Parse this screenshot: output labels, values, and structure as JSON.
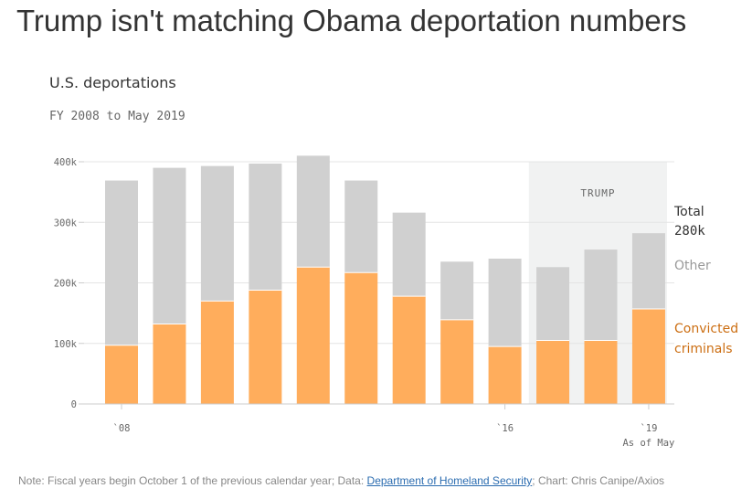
{
  "headline": "Trump isn't matching Obama deportation numbers",
  "note": {
    "prefix": "Note: Fiscal years begin October 1 of the previous calendar year; Data: ",
    "link": "Department of Homeland Security",
    "suffix": "; Chart: Chris Canipe/Axios"
  },
  "chart_data": {
    "type": "bar",
    "stacked": true,
    "title": "U.S. deportations",
    "subtitle": "FY 2008 to May 2019",
    "categories": [
      "2008",
      "2009",
      "2010",
      "2011",
      "2012",
      "2013",
      "2014",
      "2015",
      "2016",
      "2017",
      "2018",
      "2019"
    ],
    "series": [
      {
        "name": "Convicted criminals",
        "color": "#ffad5c",
        "values": [
          97000,
          132000,
          170000,
          188000,
          226000,
          217000,
          178000,
          139000,
          95000,
          105000,
          105000,
          157000
        ]
      },
      {
        "name": "Other",
        "color": "#d0d0d0",
        "values": [
          272000,
          258000,
          223000,
          209000,
          184000,
          152000,
          138000,
          96000,
          145000,
          121000,
          150000,
          125000
        ]
      }
    ],
    "ylim": [
      0,
      400000
    ],
    "y_ticks": [
      0,
      100000,
      200000,
      300000,
      400000
    ],
    "y_tick_labels": [
      "0",
      "100k",
      "200k",
      "300k",
      "400k"
    ],
    "x_tick_labels": [
      {
        "category": "2008",
        "label": "`08"
      },
      {
        "category": "2016",
        "label": "`16"
      },
      {
        "category": "2019",
        "label": "`19"
      }
    ],
    "x_note": "As of May",
    "shaded_region": {
      "label": "TRUMP",
      "from": "2017",
      "to": "2019"
    },
    "legend": {
      "total_label": "Total",
      "total_value": "280k",
      "other_label": "Other",
      "convicted_label_line1": "Convicted",
      "convicted_label_line2": "criminals"
    },
    "grid": true
  }
}
